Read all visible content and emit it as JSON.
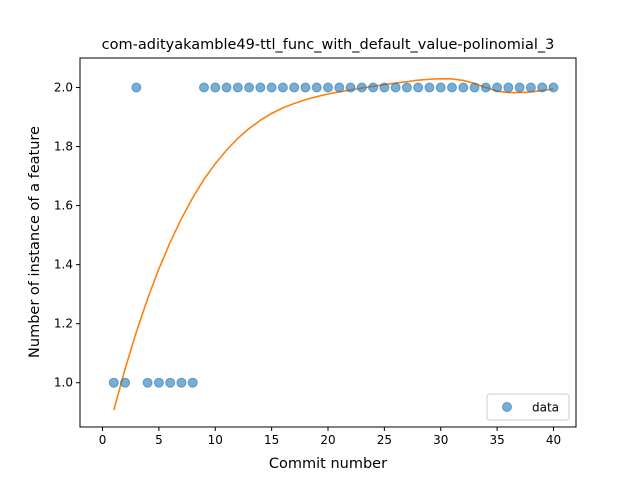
{
  "chart_data": {
    "type": "scatter",
    "title": "com-adityakamble49-ttl_func_with_default_value-polinomial_3",
    "xlabel": "Commit number",
    "ylabel": "Number of instance of a feature",
    "xlim": [
      -2,
      42
    ],
    "ylim": [
      0.85,
      2.1
    ],
    "xticks": [
      0,
      5,
      10,
      15,
      20,
      25,
      30,
      35,
      40
    ],
    "yticks": [
      1.0,
      1.2,
      1.4,
      1.6,
      1.8,
      2.0
    ],
    "xtick_labels": [
      "0",
      "5",
      "10",
      "15",
      "20",
      "25",
      "30",
      "35",
      "40"
    ],
    "ytick_labels": [
      "1.0",
      "1.2",
      "1.4",
      "1.6",
      "1.8",
      "2.0"
    ],
    "grid": false,
    "legend_position": "lower-right",
    "series": [
      {
        "name": "data",
        "kind": "scatter",
        "color": "#1f77b4",
        "x": [
          1,
          2,
          3,
          4,
          5,
          6,
          7,
          8,
          9,
          10,
          11,
          12,
          13,
          14,
          15,
          16,
          17,
          18,
          19,
          20,
          21,
          22,
          23,
          24,
          25,
          26,
          27,
          28,
          29,
          30,
          31,
          32,
          33,
          34,
          35,
          36,
          37,
          38,
          39,
          40
        ],
        "y": [
          1,
          1,
          2,
          1,
          1,
          1,
          1,
          1,
          2,
          2,
          2,
          2,
          2,
          2,
          2,
          2,
          2,
          2,
          2,
          2,
          2,
          2,
          2,
          2,
          2,
          2,
          2,
          2,
          2,
          2,
          2,
          2,
          2,
          2,
          2,
          2,
          2,
          2,
          2,
          2
        ]
      },
      {
        "kind": "line",
        "color": "#ff7f0e",
        "fit": "cubic polynomial",
        "x": [
          1,
          2,
          3,
          4,
          5,
          6,
          7,
          8,
          9,
          10,
          11,
          12,
          13,
          14,
          15,
          16,
          17,
          18,
          19,
          20,
          21,
          22,
          23,
          24,
          25,
          26,
          27,
          28,
          29,
          30,
          31,
          32,
          33,
          34,
          35,
          36,
          37,
          38,
          39,
          40
        ],
        "y": [
          0.907,
          1.047,
          1.172,
          1.285,
          1.386,
          1.476,
          1.556,
          1.627,
          1.689,
          1.742,
          1.788,
          1.828,
          1.861,
          1.889,
          1.912,
          1.931,
          1.946,
          1.959,
          1.969,
          1.978,
          1.985,
          1.992,
          1.998,
          2.004,
          2.01,
          2.015,
          2.02,
          2.025,
          2.028,
          2.03,
          2.029,
          2.024,
          2.014,
          2.0,
          1.988,
          1.983,
          1.983,
          1.985,
          1.99,
          1.995
        ]
      }
    ]
  }
}
